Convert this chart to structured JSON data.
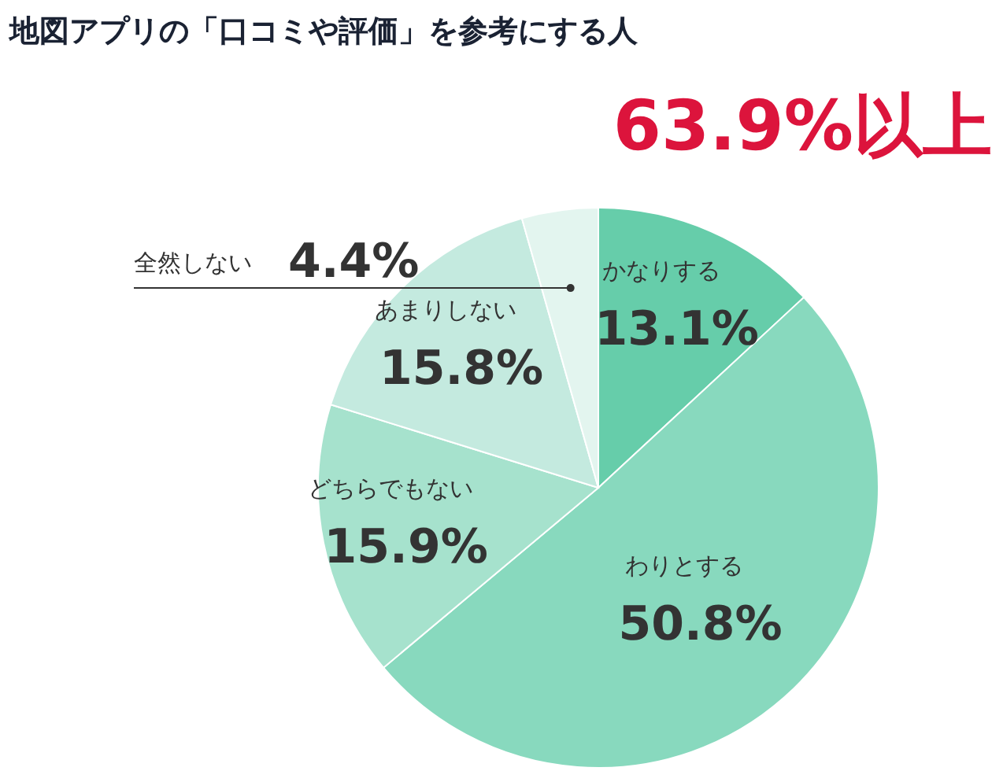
{
  "chart_data": {
    "type": "pie",
    "title": "地図アプリの「口コミや評価」を参考にする人",
    "annotations": [
      "63.9%以上"
    ],
    "categories": [
      "かなりする",
      "わりとする",
      "どちらでもない",
      "あまりしない",
      "全然しない"
    ],
    "values": [
      13.1,
      50.8,
      15.9,
      15.8,
      4.4
    ],
    "value_labels": [
      "13.1%",
      "50.8%",
      "15.9%",
      "15.8%",
      "4.4%"
    ],
    "colors": [
      "#66cdaa",
      "#88d9be",
      "#a6e2cd",
      "#c4eadf",
      "#e3f5ef"
    ]
  }
}
